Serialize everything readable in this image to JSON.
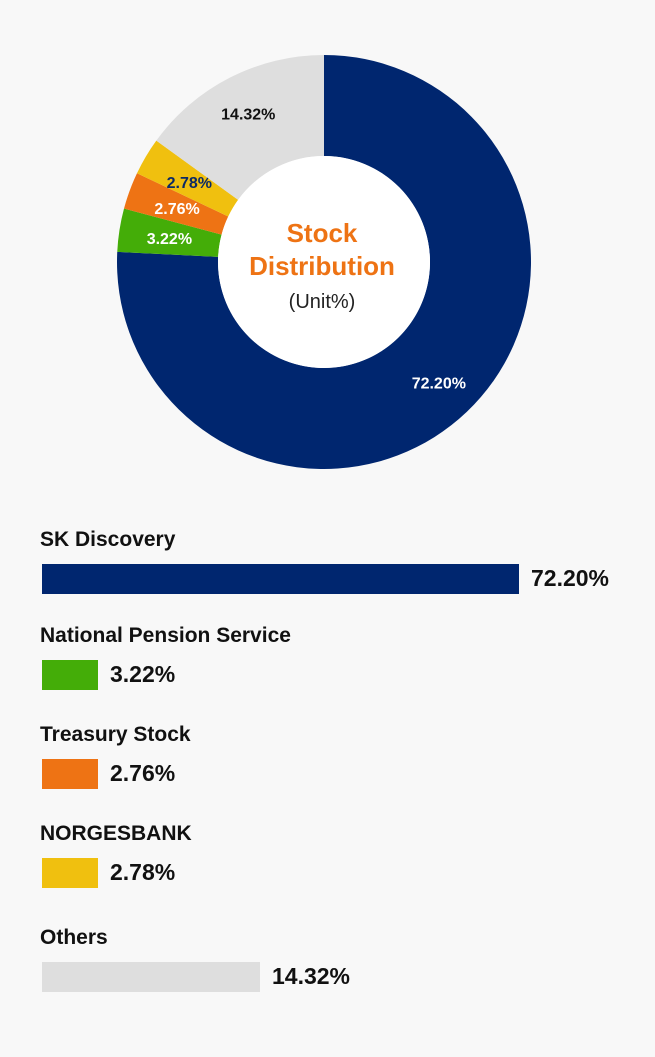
{
  "chart_data": {
    "type": "pie",
    "center_title_line1": "Stock",
    "center_title_line2": "Distribution",
    "unit": "(Unit%)",
    "series": [
      {
        "name": "SK Discovery",
        "value": 72.2,
        "value_label": "72.20%",
        "color": "#00266f",
        "label_color": "#ffffff"
      },
      {
        "name": "National Pension Service",
        "value": 3.22,
        "value_label": "3.22%",
        "color": "#44ad08",
        "label_color": "#ffffff"
      },
      {
        "name": "Treasury Stock",
        "value": 2.76,
        "value_label": "2.76%",
        "color": "#ee7314",
        "label_color": "#ffffff"
      },
      {
        "name": "NORGESBANK",
        "value": 2.78,
        "value_label": "2.78%",
        "color": "#f0c00f",
        "label_color": "#0c2a66"
      },
      {
        "name": "Others",
        "value": 14.32,
        "value_label": "14.32%",
        "color": "#dedede",
        "label_color": "#111111"
      }
    ]
  }
}
